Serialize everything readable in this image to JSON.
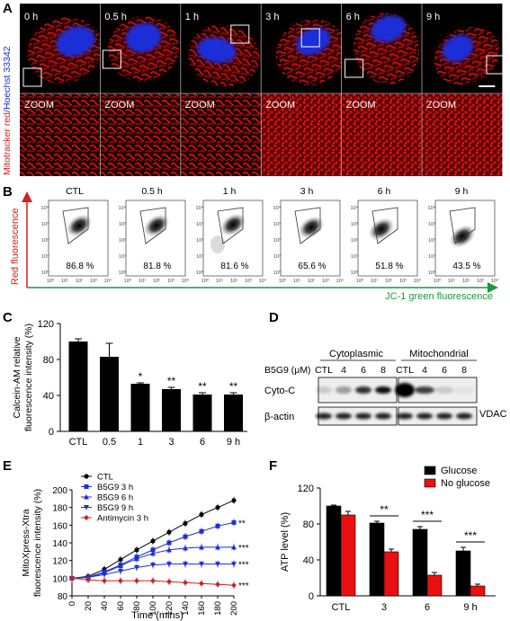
{
  "panel_labels": {
    "a": "A",
    "b": "B",
    "c": "C",
    "d": "D",
    "e": "E",
    "f": "F"
  },
  "panelA": {
    "ylabel_red": "Mitotracker red",
    "ylabel_sep": "/",
    "ylabel_blue": "Hoechst 33342",
    "timepoints": [
      "0 h",
      "0.5 h",
      "1 h",
      "3 h",
      "6 h",
      "9 h"
    ],
    "zoom_label": "ZOOM",
    "colors": {
      "mito": "#e01010",
      "nucleus": "#1a2fd8",
      "background": "#000000"
    }
  },
  "panelB": {
    "ylabel": "Red fluorescence",
    "xlabel": "JC-1 green fluorescence",
    "conditions": [
      "CTL",
      "0.5 h",
      "1 h",
      "3 h",
      "6 h",
      "9 h"
    ],
    "percentages": [
      "86.8 %",
      "81.8 %",
      "81.6 %",
      "65.6 %",
      "51.8 %",
      "43.5 %"
    ],
    "tick_labels": [
      "10⁰",
      "10¹",
      "10²",
      "10³",
      "10⁴"
    ],
    "colors": {
      "y_axis": "#d42020",
      "x_axis": "#1a9a3a"
    }
  },
  "chart_data": [
    {
      "type": "bar",
      "panel": "C",
      "categories": [
        "CTL",
        "0.5",
        "1",
        "3",
        "6",
        "9 h"
      ],
      "values": [
        100,
        83,
        53,
        47,
        41,
        41
      ],
      "errors": [
        3,
        15,
        1,
        2,
        2,
        2
      ],
      "significance": [
        "",
        "",
        "*",
        "**",
        "**",
        "**"
      ],
      "ylabel": "Calcein-AM relative fluorescence intensity (%)",
      "ylabel_lines": [
        "Calcein-AM relative",
        "fluorescence intensity (%)"
      ],
      "ylim": [
        0,
        120
      ],
      "yticks": [
        0,
        40,
        80,
        120
      ]
    },
    {
      "type": "line",
      "panel": "E",
      "x": [
        0,
        20,
        40,
        60,
        80,
        100,
        120,
        140,
        160,
        180,
        200
      ],
      "xticks": [
        0,
        20,
        40,
        60,
        80,
        100,
        120,
        140,
        160,
        180,
        200
      ],
      "yticks": [
        80,
        100,
        120,
        140,
        160,
        180,
        200
      ],
      "ylim": [
        80,
        200
      ],
      "xlabel": "Time (mins)",
      "ylabel": "MitoXpress-Xtra fluorescence intensity (%)",
      "ylabel_lines": [
        "MitoXpress-Xtra",
        "fluorescence intensity (%)"
      ],
      "series": [
        {
          "name": "CTL",
          "color": "#000000",
          "marker": "circle",
          "values": [
            100,
            102,
            110,
            121,
            132,
            142,
            152,
            162,
            172,
            180,
            188
          ],
          "sig": ""
        },
        {
          "name": "B5G9 3 h",
          "color": "#1a2fd8",
          "marker": "square",
          "values": [
            100,
            101,
            107,
            115,
            124,
            132,
            140,
            147,
            153,
            159,
            163
          ],
          "sig": "**"
        },
        {
          "name": "B5G9 6 h",
          "color": "#1a2fd8",
          "marker": "triangle-up",
          "values": [
            100,
            101,
            106,
            114,
            122,
            128,
            132,
            134,
            135,
            135,
            135
          ],
          "sig": "***"
        },
        {
          "name": "B5G9 9 h",
          "color": "#1a2fd8",
          "marker": "triangle-down",
          "values": [
            100,
            101,
            104,
            108,
            112,
            115,
            116,
            116,
            116,
            116,
            116
          ],
          "sig": "***"
        },
        {
          "name": "Antimycin 3 h",
          "color": "#d42020",
          "marker": "diamond",
          "values": [
            100,
            98,
            97,
            97,
            97,
            97,
            96,
            95,
            94,
            93,
            92
          ],
          "sig": "***"
        }
      ]
    },
    {
      "type": "bar",
      "panel": "F",
      "categories": [
        "CTL",
        "3",
        "6",
        "9 h"
      ],
      "series": [
        {
          "name": "Glucose",
          "color": "#000000",
          "values": [
            100,
            81,
            74,
            50
          ],
          "errors": [
            1,
            2,
            3,
            4
          ]
        },
        {
          "name": "No glucose",
          "color": "#e81010",
          "values": [
            90,
            49,
            23,
            11
          ],
          "errors": [
            4,
            3,
            3,
            2
          ]
        }
      ],
      "significance": [
        "",
        "**",
        "***",
        "***"
      ],
      "ylabel": "ATP level (%)",
      "ylim": [
        0,
        120
      ],
      "yticks": [
        0,
        40,
        80,
        120
      ]
    }
  ],
  "panelD": {
    "group_cytoplasmic": "Cytoplasmic",
    "group_mitochondrial": "Mitochondrial",
    "treatment_label": "B5G9 (μM)",
    "lanes": [
      "CTL",
      "4",
      "6",
      "8",
      "CTL",
      "4",
      "6",
      "8"
    ],
    "rows": [
      "Cyto-C",
      "β-actin"
    ],
    "right_label": "VDAC",
    "cytoc_intensity": [
      0.15,
      0.35,
      0.8,
      0.95,
      1.0,
      0.75,
      0.15,
      0.05
    ]
  }
}
